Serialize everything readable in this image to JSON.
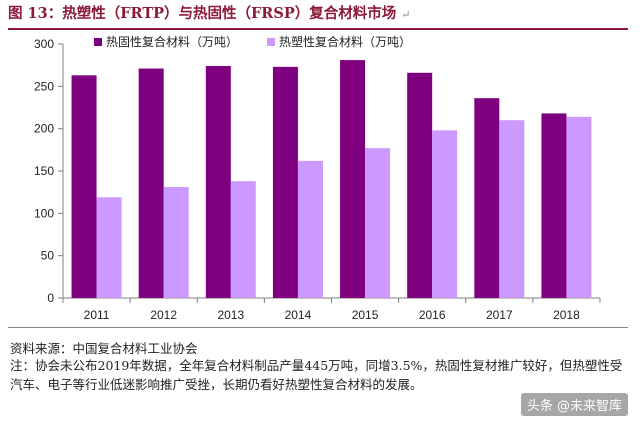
{
  "figure": {
    "title": "图 13：热塑性（FRTP）与热固性（FRSP）复合材料市场",
    "paragraph_mark": "↵"
  },
  "chart_data": {
    "type": "bar",
    "categories": [
      "2011",
      "2012",
      "2013",
      "2014",
      "2015",
      "2016",
      "2017",
      "2018"
    ],
    "series": [
      {
        "name": "热固性复合材料（万吨）",
        "color": "#7f007f",
        "values": [
          263,
          271,
          274,
          273,
          281,
          266,
          236,
          218
        ]
      },
      {
        "name": "热塑性复合材料（万吨）",
        "color": "#cc99ff",
        "values": [
          119,
          131,
          138,
          162,
          177,
          198,
          210,
          214
        ]
      }
    ],
    "ylim": [
      0,
      300
    ],
    "yticks": [
      0,
      50,
      100,
      150,
      200,
      250,
      300
    ],
    "legend": "top",
    "grid": false
  },
  "source": "资料来源：中国复合材料工业协会",
  "note": "注：协会未公布2019年数据，全年复合材料制品产量445万吨，同增3.5%，热固性复材推广较好，但热塑性受汽车、电子等行业低迷影响推广受挫，长期仍看好热塑性复合材料的发展。",
  "watermark": "头条 @未来智库"
}
